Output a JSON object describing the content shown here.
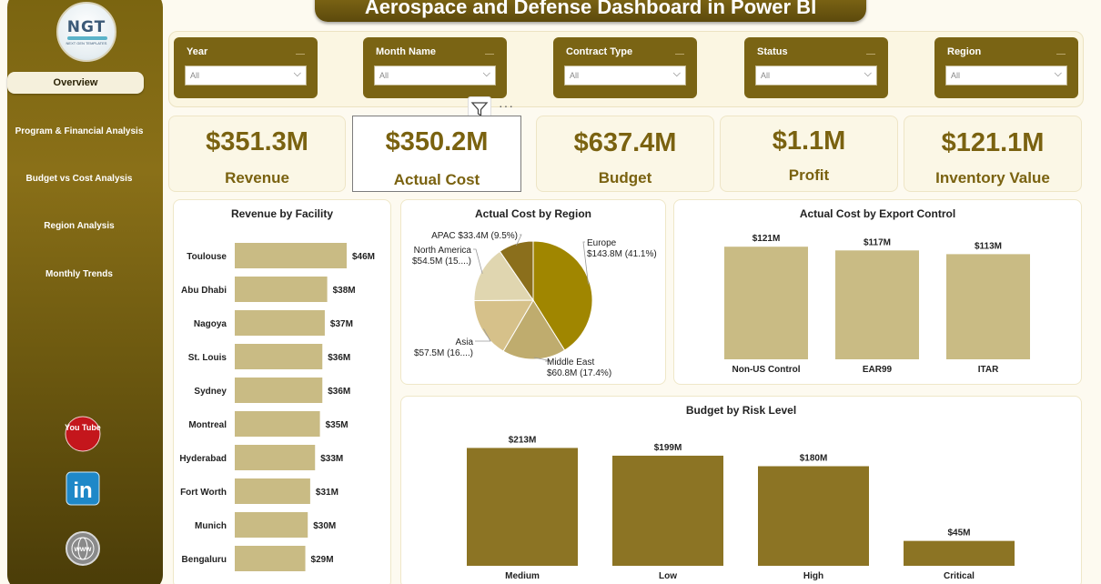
{
  "title": "Aerospace and Defense Dashboard in Power BI",
  "logo": {
    "text": "NGT",
    "subtext": "NEXT GEN TEMPLATES"
  },
  "sidebar": {
    "items": [
      {
        "label": "Overview",
        "active": true
      },
      {
        "label": "Program & Financial Analysis"
      },
      {
        "label": "Budget vs Cost Analysis"
      },
      {
        "label": "Region Analysis"
      },
      {
        "label": "Monthly Trends"
      }
    ],
    "social": [
      "youtube-icon",
      "linkedin-icon",
      "web-icon"
    ],
    "youtube_text": "You Tube",
    "linkedin_text": "in",
    "web_text": "www"
  },
  "slicers": [
    {
      "label": "Year",
      "value": "All"
    },
    {
      "label": "Month Name",
      "value": "All"
    },
    {
      "label": "Contract Type",
      "value": "All"
    },
    {
      "label": "Status",
      "value": "All"
    },
    {
      "label": "Region",
      "value": "All"
    }
  ],
  "visual_header": {
    "more": "···"
  },
  "kpis": [
    {
      "value": "$351.3M",
      "label": "Revenue"
    },
    {
      "value": "$350.2M",
      "label": "Actual Cost"
    },
    {
      "value": "$637.4M",
      "label": "Budget"
    },
    {
      "value": "$1.1M",
      "label": "Profit"
    },
    {
      "value": "$121.1M",
      "label": "Inventory Value"
    }
  ],
  "colors": {
    "gold_dark": "#7a6210",
    "bar_tan": "#c9bb84",
    "bar_olive": "#8c7424",
    "pie": [
      "#a08600",
      "#bfac6e",
      "#d6c18a",
      "#e0d6b0",
      "#8b6f1c"
    ]
  },
  "chart_data": [
    {
      "type": "bar",
      "orientation": "horizontal",
      "title": "Revenue by Facility",
      "categories": [
        "Toulouse",
        "Abu Dhabi",
        "Nagoya",
        "St. Louis",
        "Sydney",
        "Montreal",
        "Hyderabad",
        "Fort Worth",
        "Munich",
        "Bengaluru"
      ],
      "values": [
        46,
        38,
        37,
        36,
        36,
        35,
        33,
        31,
        30,
        29
      ],
      "labels": [
        "$46M",
        "$38M",
        "$37M",
        "$36M",
        "$36M",
        "$35M",
        "$33M",
        "$31M",
        "$30M",
        "$29M"
      ],
      "xlim": [
        0,
        46
      ]
    },
    {
      "type": "pie",
      "title": "Actual Cost by Region",
      "categories": [
        "Europe",
        "Middle East",
        "Asia",
        "North America",
        "APAC"
      ],
      "values": [
        143.8,
        60.8,
        57.5,
        54.5,
        33.4
      ],
      "labels": [
        [
          "Europe",
          "$143.8M (41.1%)"
        ],
        [
          "Middle East",
          "$60.8M (17.4%)"
        ],
        [
          "Asia",
          "$57.5M (16....)"
        ],
        [
          "North America",
          "$54.5M (15....)"
        ],
        [
          "APAC $33.4M (9.5%)"
        ]
      ]
    },
    {
      "type": "bar",
      "title": "Actual Cost by Export Control",
      "categories": [
        "Non-US Control",
        "EAR99",
        "ITAR"
      ],
      "values": [
        121,
        117,
        113
      ],
      "labels": [
        "$121M",
        "$117M",
        "$113M"
      ],
      "ylim": [
        0,
        130
      ]
    },
    {
      "type": "bar",
      "title": "Budget by Risk Level",
      "categories": [
        "Medium",
        "Low",
        "High",
        "Critical"
      ],
      "values": [
        213,
        199,
        180,
        45
      ],
      "labels": [
        "$213M",
        "$199M",
        "$180M",
        "$45M"
      ],
      "ylim": [
        0,
        240
      ]
    }
  ]
}
